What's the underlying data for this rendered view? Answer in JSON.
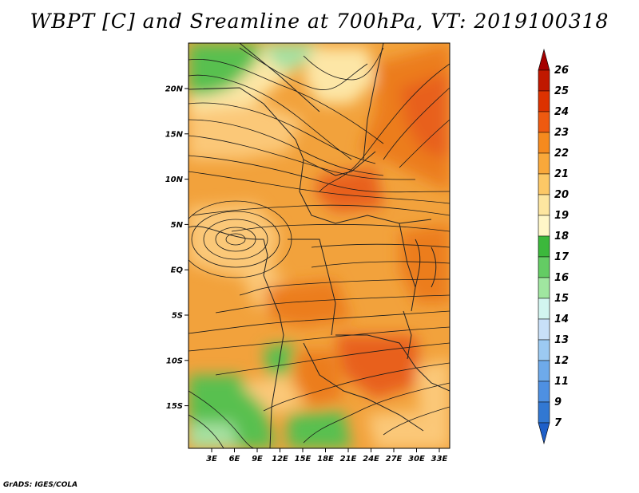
{
  "title": "WBPT [C] and Sreamline at 700hPa, VT: 2019100318",
  "credit": "GrADS: IGES/COLA",
  "lat_ticks": [
    "20N",
    "15N",
    "10N",
    "5N",
    "EQ",
    "5S",
    "10S",
    "15S"
  ],
  "lon_ticks": [
    "3E",
    "6E",
    "9E",
    "12E",
    "15E",
    "18E",
    "21E",
    "24E",
    "27E",
    "30E",
    "33E"
  ],
  "colorbar": {
    "levels": [
      "26",
      "25",
      "24",
      "23",
      "22",
      "21",
      "20",
      "19",
      "18",
      "17",
      "16",
      "15",
      "14",
      "13",
      "12",
      "11",
      "9",
      "7"
    ],
    "colors": [
      "#a50000",
      "#c01800",
      "#dc3200",
      "#ee5a10",
      "#f58a1e",
      "#f9a83a",
      "#fcc866",
      "#fde6a0",
      "#fff7c8",
      "#3cb83c",
      "#64cc64",
      "#a0e6a0",
      "#d2f5f0",
      "#c8e0f8",
      "#9ccaf2",
      "#6eaaea",
      "#4e90e2",
      "#3278d2",
      "#1e5fc8"
    ]
  },
  "palette": {
    "warm_orange": "#f2a23c",
    "hot_orange": "#ec7d1e",
    "red_orange": "#e8601a",
    "peach": "#fbc878",
    "pale_yellow": "#fde6a6",
    "green": "#58c050",
    "light_green": "#a6e0a0",
    "streamline": "#1a1a1a",
    "border": "#222222"
  }
}
